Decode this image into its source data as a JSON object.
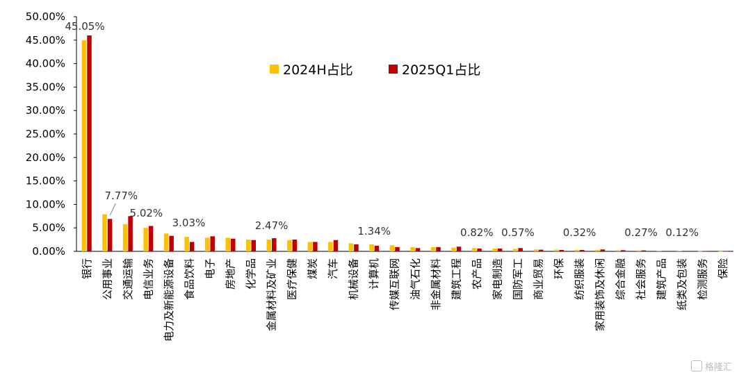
{
  "chart_data": {
    "type": "bar",
    "ylim": [
      0,
      50
    ],
    "ytick_labels": [
      "0.00%",
      "5.00%",
      "10.00%",
      "15.00%",
      "20.00%",
      "25.00%",
      "30.00%",
      "35.00%",
      "40.00%",
      "45.00%",
      "50.00%"
    ],
    "categories": [
      "银行",
      "公用事业",
      "交通运输",
      "电信业务",
      "电力及新能源设备",
      "食品饮料",
      "电子",
      "房地产",
      "化学品",
      "金属材料及矿业",
      "医疗保健",
      "煤炭",
      "汽车",
      "机械设备",
      "计算机",
      "传媒互联网",
      "油气石化",
      "非金属材料",
      "建筑工程",
      "农产品",
      "家电制造",
      "国防军工",
      "商业贸易",
      "环保",
      "纺织服装",
      "家用装饰及休闲",
      "综合金融",
      "社会服务",
      "建筑产品",
      "纸类及包装",
      "检测服务",
      "保险"
    ],
    "series": [
      {
        "name": "2024H占比",
        "color": "#FFC000",
        "values": [
          45.0,
          7.9,
          5.8,
          5.0,
          3.8,
          3.1,
          2.9,
          2.9,
          2.5,
          2.5,
          2.4,
          2.0,
          2.0,
          1.7,
          1.5,
          1.3,
          0.9,
          0.9,
          0.8,
          0.7,
          0.6,
          0.5,
          0.4,
          0.35,
          0.3,
          0.3,
          0.25,
          0.2,
          0.12,
          0.1,
          0.05,
          0.03
        ]
      },
      {
        "name": "2025Q1占比",
        "color": "#C00000",
        "values": [
          46.0,
          6.9,
          7.5,
          5.4,
          3.3,
          2.0,
          3.2,
          2.7,
          2.4,
          2.8,
          2.5,
          2.0,
          2.4,
          1.5,
          1.2,
          0.9,
          0.7,
          0.9,
          1.0,
          0.6,
          0.6,
          0.7,
          0.35,
          0.3,
          0.3,
          0.4,
          0.25,
          0.2,
          0.1,
          0.1,
          0.05,
          0.02
        ]
      }
    ],
    "annotations": [
      {
        "text": "45.05%",
        "category_index": 0
      },
      {
        "text": "7.77%",
        "category_index": 1
      },
      {
        "text": "5.02%",
        "category_index": 3
      },
      {
        "text": "3.03%",
        "category_index": 5
      },
      {
        "text": "2.47%",
        "category_index": 9
      },
      {
        "text": "1.34%",
        "category_index": 14
      },
      {
        "text": "0.82%",
        "category_index": 19
      },
      {
        "text": "0.57%",
        "category_index": 21
      },
      {
        "text": "0.32%",
        "category_index": 24
      },
      {
        "text": "0.27%",
        "category_index": 27
      },
      {
        "text": "0.12%",
        "category_index": 29
      }
    ],
    "legend_position": "top-center",
    "grid": false
  },
  "watermark": "格隆汇"
}
